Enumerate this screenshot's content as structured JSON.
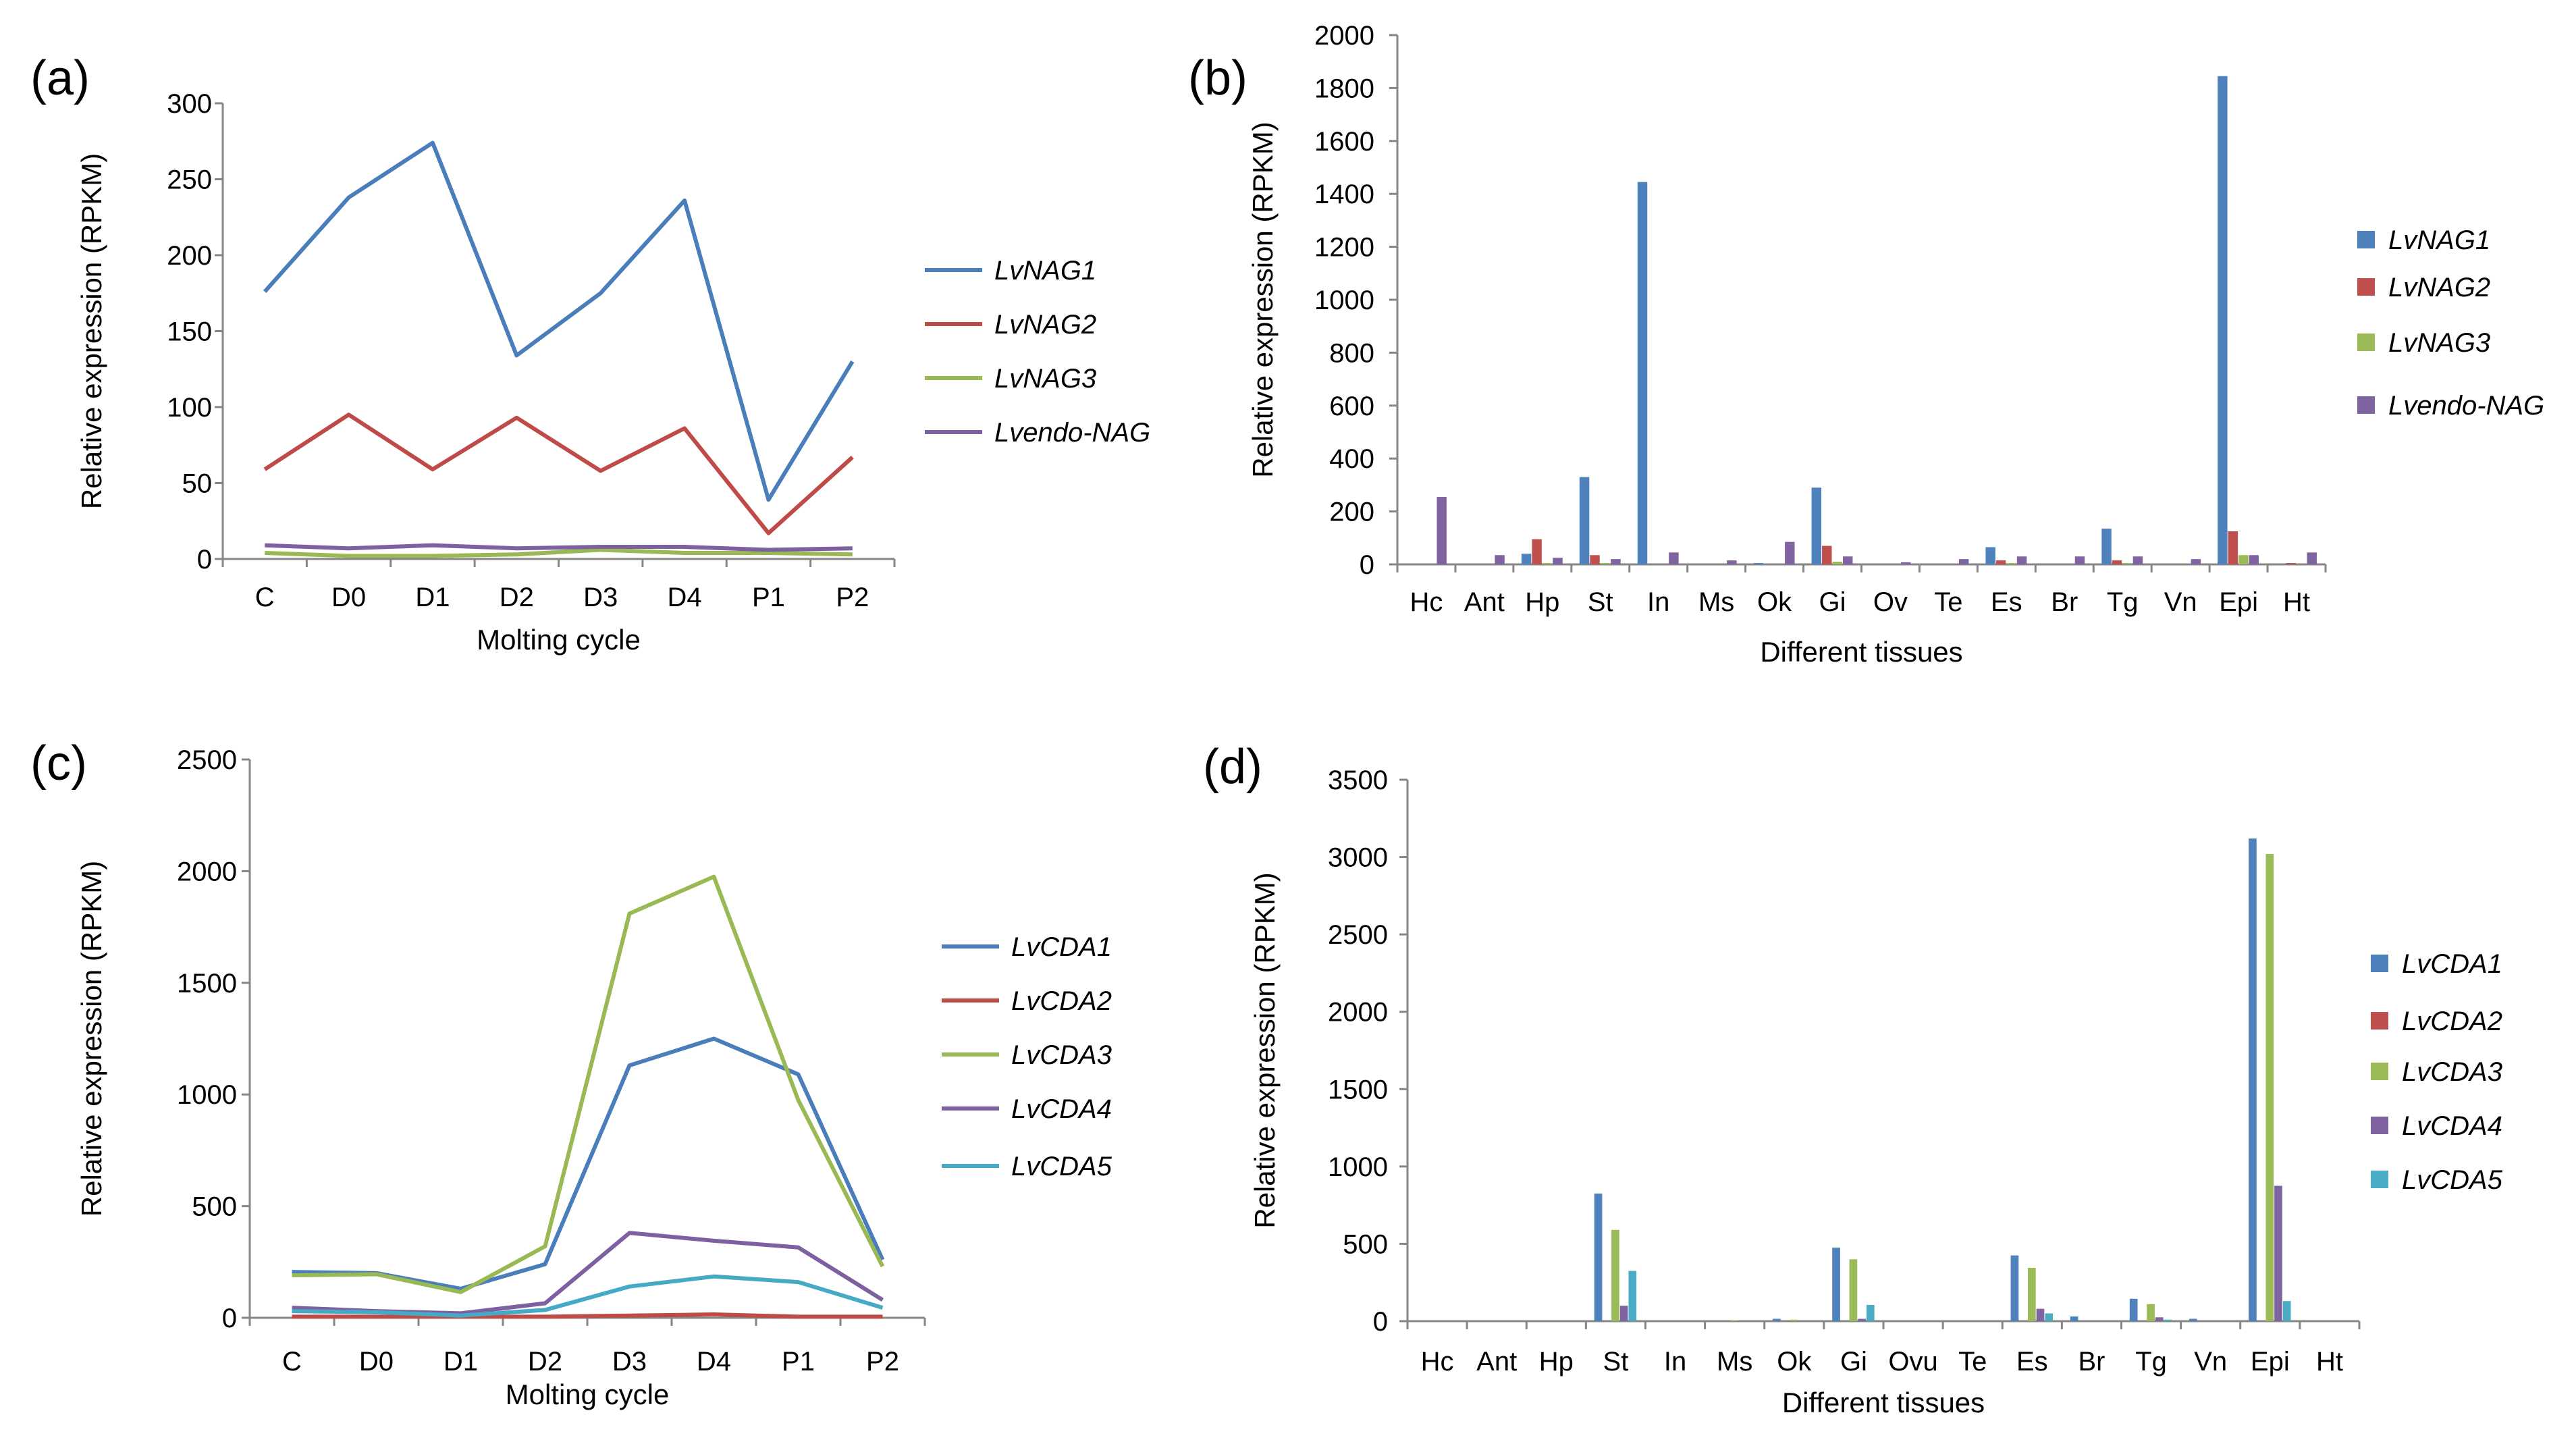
{
  "figure": {
    "panels": [
      {
        "label": "(a)"
      },
      {
        "label": "(b)"
      },
      {
        "label": "(c)"
      },
      {
        "label": "(d)"
      }
    ]
  },
  "chart_data": [
    {
      "panel": "(a)",
      "type": "line",
      "xlabel": "Molting cycle",
      "ylabel": "Relative expression (RPKM)",
      "categories": [
        "C",
        "D0",
        "D1",
        "D2",
        "D3",
        "D4",
        "P1",
        "P2"
      ],
      "ylim": [
        0,
        300
      ],
      "yticks": [
        0,
        50,
        100,
        150,
        200,
        250,
        300
      ],
      "legend_position": "right",
      "grid": false,
      "series": [
        {
          "name": "LvNAG1",
          "color": "#4a7ebb",
          "values": [
            176,
            238,
            274,
            134,
            175,
            236,
            39,
            130
          ]
        },
        {
          "name": "LvNAG2",
          "color": "#be4b48",
          "values": [
            59,
            95,
            59,
            93,
            58,
            86,
            17,
            67
          ]
        },
        {
          "name": "LvNAG3",
          "color": "#98b954",
          "values": [
            4,
            2,
            2,
            3,
            6,
            4,
            4,
            3
          ]
        },
        {
          "name": "Lvendo-NAG",
          "color": "#7d60a0",
          "values": [
            9,
            7,
            9,
            7,
            8,
            8,
            6,
            7
          ]
        }
      ]
    },
    {
      "panel": "(b)",
      "type": "bar",
      "xlabel": "Different tissues",
      "ylabel": "Relative expression (RPKM)",
      "categories": [
        "Hc",
        "Ant",
        "Hp",
        "St",
        "In",
        "Ms",
        "Ok",
        "Gi",
        "Ov",
        "Te",
        "Es",
        "Br",
        "Tg",
        "Vn",
        "Epi",
        "Ht"
      ],
      "ylim": [
        0,
        2000
      ],
      "yticks": [
        0,
        200,
        400,
        600,
        800,
        1000,
        1200,
        1400,
        1600,
        1800,
        2000
      ],
      "legend_position": "right",
      "grid": false,
      "series": [
        {
          "name": "LvNAG1",
          "color": "#4f81bd",
          "values": [
            0,
            0,
            40,
            330,
            1445,
            0,
            5,
            290,
            0,
            0,
            65,
            0,
            135,
            0,
            1845,
            0
          ]
        },
        {
          "name": "LvNAG2",
          "color": "#c0504d",
          "values": [
            0,
            0,
            95,
            35,
            0,
            0,
            0,
            70,
            0,
            0,
            15,
            0,
            15,
            0,
            125,
            5
          ]
        },
        {
          "name": "LvNAG3",
          "color": "#9bbb59",
          "values": [
            0,
            0,
            5,
            5,
            0,
            0,
            0,
            10,
            0,
            0,
            5,
            0,
            5,
            0,
            35,
            0
          ]
        },
        {
          "name": "Lvendo-NAG",
          "color": "#8064a2",
          "values": [
            255,
            35,
            25,
            20,
            45,
            15,
            85,
            30,
            8,
            20,
            30,
            30,
            30,
            20,
            35,
            45
          ]
        }
      ]
    },
    {
      "panel": "(c)",
      "type": "line",
      "xlabel": "Molting cycle",
      "ylabel": "Relative expression (RPKM)",
      "categories": [
        "C",
        "D0",
        "D1",
        "D2",
        "D3",
        "D4",
        "P1",
        "P2"
      ],
      "ylim": [
        0,
        2500
      ],
      "yticks": [
        0,
        500,
        1000,
        1500,
        2000,
        2500
      ],
      "legend_position": "right",
      "grid": false,
      "series": [
        {
          "name": "LvCDA1",
          "color": "#4a7ebb",
          "values": [
            205,
            200,
            130,
            240,
            1130,
            1250,
            1090,
            260
          ]
        },
        {
          "name": "LvCDA2",
          "color": "#be4b48",
          "values": [
            5,
            5,
            5,
            5,
            10,
            15,
            5,
            5
          ]
        },
        {
          "name": "LvCDA3",
          "color": "#98b954",
          "values": [
            190,
            195,
            115,
            320,
            1810,
            1975,
            975,
            230
          ]
        },
        {
          "name": "LvCDA4",
          "color": "#7d60a0",
          "values": [
            45,
            30,
            20,
            65,
            380,
            345,
            315,
            80
          ]
        },
        {
          "name": "LvCDA5",
          "color": "#46aac5",
          "values": [
            30,
            25,
            10,
            35,
            140,
            185,
            160,
            45
          ]
        }
      ]
    },
    {
      "panel": "(d)",
      "type": "bar",
      "xlabel": "Different tissues",
      "ylabel": "Relative expression (RPKM)",
      "categories": [
        "Hc",
        "Ant",
        "Hp",
        "St",
        "In",
        "Ms",
        "Ok",
        "Gi",
        "Ovu",
        "Te",
        "Es",
        "Br",
        "Tg",
        "Vn",
        "Epi",
        "Ht"
      ],
      "ylim": [
        0,
        3500
      ],
      "yticks": [
        0,
        500,
        1000,
        1500,
        2000,
        2500,
        3000,
        3500
      ],
      "legend_position": "right",
      "grid": false,
      "series": [
        {
          "name": "LvCDA1",
          "color": "#4f81bd",
          "values": [
            0,
            0,
            0,
            825,
            0,
            0,
            15,
            475,
            0,
            0,
            425,
            30,
            145,
            15,
            3120,
            0
          ]
        },
        {
          "name": "LvCDA2",
          "color": "#c0504d",
          "values": [
            0,
            0,
            0,
            0,
            0,
            0,
            0,
            0,
            0,
            0,
            0,
            0,
            0,
            0,
            0,
            0
          ]
        },
        {
          "name": "LvCDA3",
          "color": "#9bbb59",
          "values": [
            0,
            0,
            0,
            590,
            0,
            5,
            10,
            400,
            0,
            0,
            345,
            0,
            110,
            0,
            3020,
            0
          ]
        },
        {
          "name": "LvCDA4",
          "color": "#8064a2",
          "values": [
            0,
            0,
            0,
            100,
            0,
            0,
            0,
            15,
            0,
            0,
            80,
            0,
            25,
            0,
            875,
            0
          ]
        },
        {
          "name": "LvCDA5",
          "color": "#4bacc6",
          "values": [
            0,
            0,
            0,
            325,
            0,
            0,
            0,
            105,
            0,
            0,
            50,
            0,
            10,
            0,
            130,
            0
          ]
        }
      ]
    }
  ]
}
